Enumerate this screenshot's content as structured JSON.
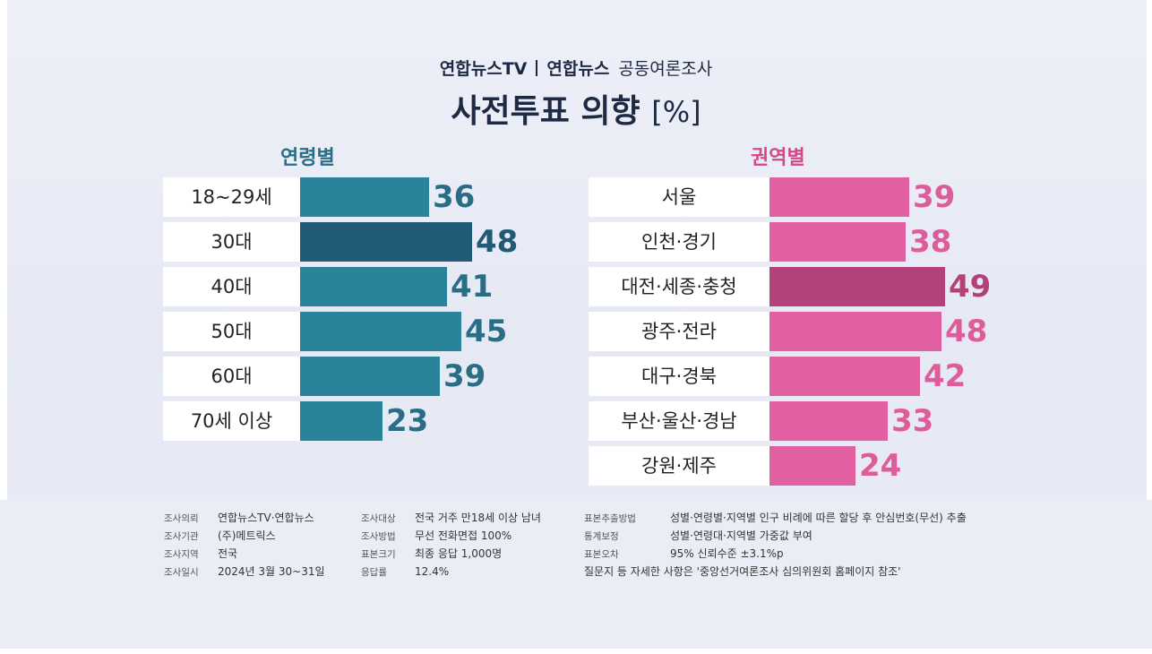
{
  "header": {
    "brand1": "연합뉴스TV",
    "brand2": "연합뉴스",
    "brand_suffix": "공동여론조사",
    "title": "사전투표 의향",
    "unit": "[%]"
  },
  "chart_data": [
    {
      "type": "bar",
      "orientation": "horizontal",
      "title": "연령별",
      "categories": [
        "18~29세",
        "30대",
        "40대",
        "50대",
        "60대",
        "70세 이상"
      ],
      "values": [
        36,
        48,
        41,
        45,
        39,
        23
      ],
      "highlight": "30대",
      "colors": {
        "bar": "#2a8499",
        "highlight": "#215a75",
        "label": "#2a6e86"
      }
    },
    {
      "type": "bar",
      "orientation": "horizontal",
      "title": "권역별",
      "categories": [
        "서울",
        "인천·경기",
        "대전·세종·충청",
        "광주·전라",
        "대구·경북",
        "부산·울산·경남",
        "강원·제주"
      ],
      "values": [
        39,
        38,
        49,
        48,
        42,
        33,
        24
      ],
      "highlight": "대전·세종·충청",
      "colors": {
        "bar": "#e060a2",
        "highlight": "#b3427a",
        "label": "#dd5c9a"
      }
    }
  ],
  "footer": {
    "col1": [
      {
        "k": "조사의뢰",
        "v": "연합뉴스TV·연합뉴스"
      },
      {
        "k": "조사기관",
        "v": "(주)메트릭스"
      },
      {
        "k": "조사지역",
        "v": "전국"
      },
      {
        "k": "조사일시",
        "v": "2024년 3월 30~31일"
      }
    ],
    "col2": [
      {
        "k": "조사대상",
        "v": "전국 거주 만18세 이상 남녀"
      },
      {
        "k": "조사방법",
        "v": "무선 전화면접 100%"
      },
      {
        "k": "표본크기",
        "v": "최종 응답 1,000명"
      },
      {
        "k": "응답률",
        "v": "12.4%"
      }
    ],
    "col3": [
      {
        "k": "표본추출방법",
        "v": "성별·연령별·지역별 인구 비례에 따른 할당 후 안심번호(무선) 추출"
      },
      {
        "k": "통계보정",
        "v": "성별·연령대·지역별 가중값 부여"
      },
      {
        "k": "표본오차",
        "v": "95% 신뢰수준 ±3.1%p"
      }
    ],
    "note": "질문지 등 자세한 사항은 '중앙선거여론조사 심의위원회 홈페이지 참조'"
  }
}
